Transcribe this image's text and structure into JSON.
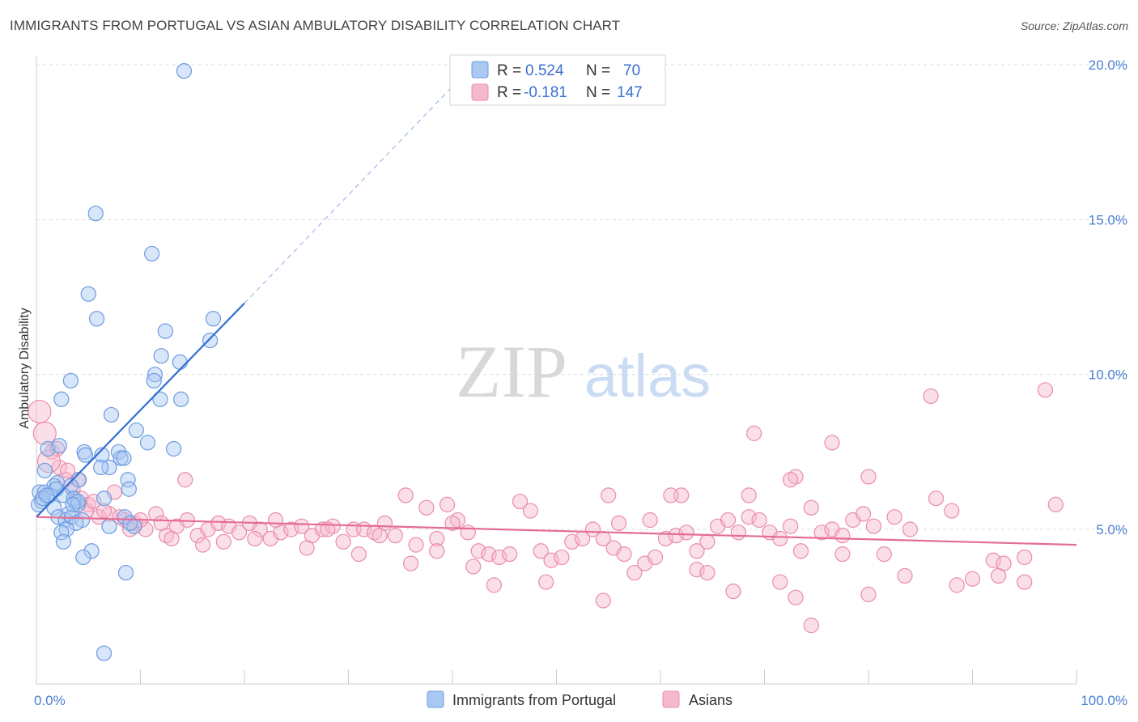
{
  "title": "IMMIGRANTS FROM PORTUGAL VS ASIAN AMBULATORY DISABILITY CORRELATION CHART",
  "source": "Source: ZipAtlas.com",
  "watermark": {
    "zip": "ZIP",
    "atlas": "atlas"
  },
  "colors": {
    "blue_fill": "#a9c8f2",
    "blue_stroke": "#6b9be0",
    "blue_line": "#2f6fd2",
    "pink_fill": "#f6b8cc",
    "pink_stroke": "#ea8cab",
    "pink_line": "#e46d96",
    "grid": "#dcdcdc",
    "tick_text": "#4a7fd4"
  },
  "legend": {
    "r_label": "R =",
    "n_label": "N =",
    "rows": [
      {
        "r": "0.524",
        "n": "70"
      },
      {
        "r": "-0.181",
        "n": "147"
      }
    ]
  },
  "chart_data": {
    "type": "scatter",
    "title": "IMMIGRANTS FROM PORTUGAL VS ASIAN AMBULATORY DISABILITY CORRELATION CHART",
    "xlabel": "",
    "ylabel": "Ambulatory Disability",
    "xlim": [
      0,
      100
    ],
    "ylim": [
      0,
      20.5
    ],
    "x_tick_labels": [
      "0.0%",
      "100.0%"
    ],
    "y_ticks": [
      5,
      10,
      15,
      20
    ],
    "y_tick_labels": [
      "5.0%",
      "10.0%",
      "15.0%",
      "20.0%"
    ],
    "grid": true,
    "legend_position": "top-center",
    "series": [
      {
        "name": "Immigrants from Portugal",
        "color": "#a9c8f2",
        "trend": {
          "x": [
            0,
            20
          ],
          "y": [
            5.4,
            12.3
          ],
          "dashed_to": [
            42,
            20.0
          ]
        },
        "points": [
          [
            14.2,
            19.8
          ],
          [
            5.7,
            15.2
          ],
          [
            11.1,
            13.9
          ],
          [
            5.0,
            12.6
          ],
          [
            5.8,
            11.8
          ],
          [
            17.0,
            11.8
          ],
          [
            12.4,
            11.4
          ],
          [
            16.7,
            11.1
          ],
          [
            12.0,
            10.6
          ],
          [
            13.8,
            10.4
          ],
          [
            11.4,
            10.0
          ],
          [
            11.3,
            9.8
          ],
          [
            3.3,
            9.8
          ],
          [
            2.4,
            9.2
          ],
          [
            11.9,
            9.2
          ],
          [
            13.9,
            9.2
          ],
          [
            7.2,
            8.7
          ],
          [
            9.6,
            8.2
          ],
          [
            10.7,
            7.8
          ],
          [
            13.2,
            7.6
          ],
          [
            1.1,
            7.6
          ],
          [
            2.2,
            7.7
          ],
          [
            4.6,
            7.5
          ],
          [
            4.7,
            7.4
          ],
          [
            6.3,
            7.4
          ],
          [
            7.9,
            7.5
          ],
          [
            8.1,
            7.3
          ],
          [
            8.4,
            7.3
          ],
          [
            7.0,
            7.0
          ],
          [
            0.8,
            6.9
          ],
          [
            4.1,
            6.6
          ],
          [
            2.0,
            6.5
          ],
          [
            1.7,
            6.4
          ],
          [
            3.3,
            6.4
          ],
          [
            0.3,
            6.2
          ],
          [
            0.8,
            6.2
          ],
          [
            1.3,
            6.1
          ],
          [
            2.6,
            6.1
          ],
          [
            0.5,
            5.9
          ],
          [
            0.2,
            5.8
          ],
          [
            1.7,
            5.7
          ],
          [
            3.7,
            5.9
          ],
          [
            4.0,
            5.8
          ],
          [
            6.5,
            6.0
          ],
          [
            8.8,
            6.6
          ],
          [
            8.9,
            6.3
          ],
          [
            3.6,
            6.0
          ],
          [
            2.1,
            5.4
          ],
          [
            3.1,
            5.5
          ],
          [
            2.8,
            5.3
          ],
          [
            3.4,
            5.4
          ],
          [
            4.4,
            5.3
          ],
          [
            3.8,
            5.2
          ],
          [
            7.0,
            5.1
          ],
          [
            9.4,
            5.1
          ],
          [
            2.9,
            5.0
          ],
          [
            2.4,
            4.9
          ],
          [
            8.5,
            5.4
          ],
          [
            2.6,
            4.6
          ],
          [
            5.3,
            4.3
          ],
          [
            4.5,
            4.1
          ],
          [
            8.6,
            3.6
          ],
          [
            6.5,
            1.0
          ],
          [
            0.6,
            6.0
          ],
          [
            1.9,
            6.3
          ],
          [
            4.0,
            5.9
          ],
          [
            6.2,
            7.0
          ],
          [
            9.0,
            5.2
          ],
          [
            1.0,
            6.1
          ],
          [
            3.5,
            5.8
          ]
        ]
      },
      {
        "name": "Asians",
        "color": "#f6b8cc",
        "trend": {
          "x": [
            0,
            100
          ],
          "y": [
            5.4,
            4.5
          ]
        },
        "points": [
          [
            0.3,
            8.8
          ],
          [
            0.8,
            8.1
          ],
          [
            1.5,
            7.5
          ],
          [
            2.2,
            7.0
          ],
          [
            2.8,
            6.6
          ],
          [
            3.5,
            6.3
          ],
          [
            4.3,
            6.0
          ],
          [
            5.0,
            5.8
          ],
          [
            7.5,
            6.2
          ],
          [
            14.3,
            6.6
          ],
          [
            4.8,
            5.6
          ],
          [
            6.0,
            5.4
          ],
          [
            7.0,
            5.5
          ],
          [
            8.5,
            5.3
          ],
          [
            9.5,
            5.2
          ],
          [
            10.5,
            5.0
          ],
          [
            11.5,
            5.5
          ],
          [
            12.5,
            4.8
          ],
          [
            13.5,
            5.1
          ],
          [
            14.5,
            5.3
          ],
          [
            15.5,
            4.8
          ],
          [
            16.5,
            5.0
          ],
          [
            17.5,
            5.2
          ],
          [
            18.5,
            5.1
          ],
          [
            19.5,
            4.9
          ],
          [
            20.5,
            5.2
          ],
          [
            21.5,
            5.0
          ],
          [
            22.5,
            4.7
          ],
          [
            23.5,
            4.9
          ],
          [
            24.5,
            5.0
          ],
          [
            25.5,
            5.1
          ],
          [
            26.5,
            4.8
          ],
          [
            27.5,
            5.0
          ],
          [
            28.5,
            5.1
          ],
          [
            29.5,
            4.6
          ],
          [
            30.5,
            5.0
          ],
          [
            31.5,
            5.0
          ],
          [
            32.5,
            4.9
          ],
          [
            33.5,
            5.2
          ],
          [
            34.5,
            4.8
          ],
          [
            35.5,
            6.1
          ],
          [
            36.5,
            4.5
          ],
          [
            37.5,
            5.7
          ],
          [
            38.5,
            4.7
          ],
          [
            39.5,
            5.8
          ],
          [
            40.5,
            5.3
          ],
          [
            41.5,
            4.9
          ],
          [
            42.5,
            4.3
          ],
          [
            43.5,
            4.2
          ],
          [
            44.5,
            4.1
          ],
          [
            45.5,
            4.2
          ],
          [
            46.5,
            5.9
          ],
          [
            47.5,
            5.6
          ],
          [
            48.5,
            4.3
          ],
          [
            49.5,
            4.0
          ],
          [
            50.5,
            4.1
          ],
          [
            51.5,
            4.6
          ],
          [
            52.5,
            4.7
          ],
          [
            53.5,
            5.0
          ],
          [
            54.5,
            4.7
          ],
          [
            55.5,
            4.4
          ],
          [
            56.5,
            4.2
          ],
          [
            57.5,
            3.6
          ],
          [
            58.5,
            3.9
          ],
          [
            59.5,
            4.1
          ],
          [
            60.5,
            4.7
          ],
          [
            61.5,
            4.8
          ],
          [
            62.5,
            4.9
          ],
          [
            63.5,
            4.3
          ],
          [
            64.5,
            4.6
          ],
          [
            65.5,
            5.1
          ],
          [
            66.5,
            5.3
          ],
          [
            67.5,
            4.9
          ],
          [
            68.5,
            5.4
          ],
          [
            69.5,
            5.3
          ],
          [
            70.5,
            4.9
          ],
          [
            71.5,
            4.7
          ],
          [
            72.5,
            5.1
          ],
          [
            73.5,
            4.3
          ],
          [
            74.5,
            5.7
          ],
          [
            75.5,
            4.9
          ],
          [
            76.5,
            5.0
          ],
          [
            77.5,
            4.8
          ],
          [
            78.5,
            5.3
          ],
          [
            79.5,
            5.5
          ],
          [
            80.5,
            5.1
          ],
          [
            81.5,
            4.2
          ],
          [
            82.5,
            5.4
          ],
          [
            84.0,
            5.0
          ],
          [
            86.0,
            9.3
          ],
          [
            88.0,
            5.6
          ],
          [
            90.0,
            3.4
          ],
          [
            92.0,
            4.0
          ],
          [
            93.0,
            3.9
          ],
          [
            95.0,
            4.1
          ],
          [
            97.0,
            9.5
          ],
          [
            98.0,
            5.8
          ],
          [
            86.5,
            6.0
          ],
          [
            71.5,
            3.3
          ],
          [
            69.0,
            8.1
          ],
          [
            76.5,
            7.8
          ],
          [
            80.0,
            6.7
          ],
          [
            73.0,
            6.7
          ],
          [
            72.5,
            6.6
          ],
          [
            68.5,
            6.1
          ],
          [
            62.0,
            6.1
          ],
          [
            61.0,
            6.1
          ],
          [
            55.0,
            6.1
          ],
          [
            56.0,
            5.2
          ],
          [
            59.0,
            5.3
          ],
          [
            63.5,
            3.7
          ],
          [
            67.0,
            3.0
          ],
          [
            73.0,
            2.8
          ],
          [
            74.5,
            1.9
          ],
          [
            80.0,
            2.9
          ],
          [
            83.5,
            3.5
          ],
          [
            88.5,
            3.2
          ],
          [
            92.5,
            3.5
          ],
          [
            95.0,
            3.3
          ],
          [
            77.5,
            4.2
          ],
          [
            64.5,
            3.6
          ],
          [
            44.0,
            3.2
          ],
          [
            54.5,
            2.7
          ],
          [
            49.0,
            3.3
          ],
          [
            42.0,
            3.8
          ],
          [
            38.5,
            4.3
          ],
          [
            36.0,
            3.9
          ],
          [
            31.0,
            4.2
          ],
          [
            26.0,
            4.4
          ],
          [
            21.0,
            4.7
          ],
          [
            16.0,
            4.5
          ],
          [
            12.0,
            5.2
          ],
          [
            9.0,
            5.0
          ],
          [
            6.5,
            5.6
          ],
          [
            4.0,
            6.6
          ],
          [
            2.0,
            7.6
          ],
          [
            1.2,
            7.2
          ],
          [
            3.0,
            6.9
          ],
          [
            5.5,
            5.9
          ],
          [
            8.0,
            5.4
          ],
          [
            10.0,
            5.3
          ],
          [
            13.0,
            4.7
          ],
          [
            18.0,
            4.6
          ],
          [
            23.0,
            5.3
          ],
          [
            28.0,
            5.0
          ],
          [
            33.0,
            4.8
          ],
          [
            40.0,
            5.2
          ]
        ]
      }
    ]
  },
  "bottom_legend": [
    {
      "label": "Immigrants from Portugal"
    },
    {
      "label": "Asians"
    }
  ]
}
